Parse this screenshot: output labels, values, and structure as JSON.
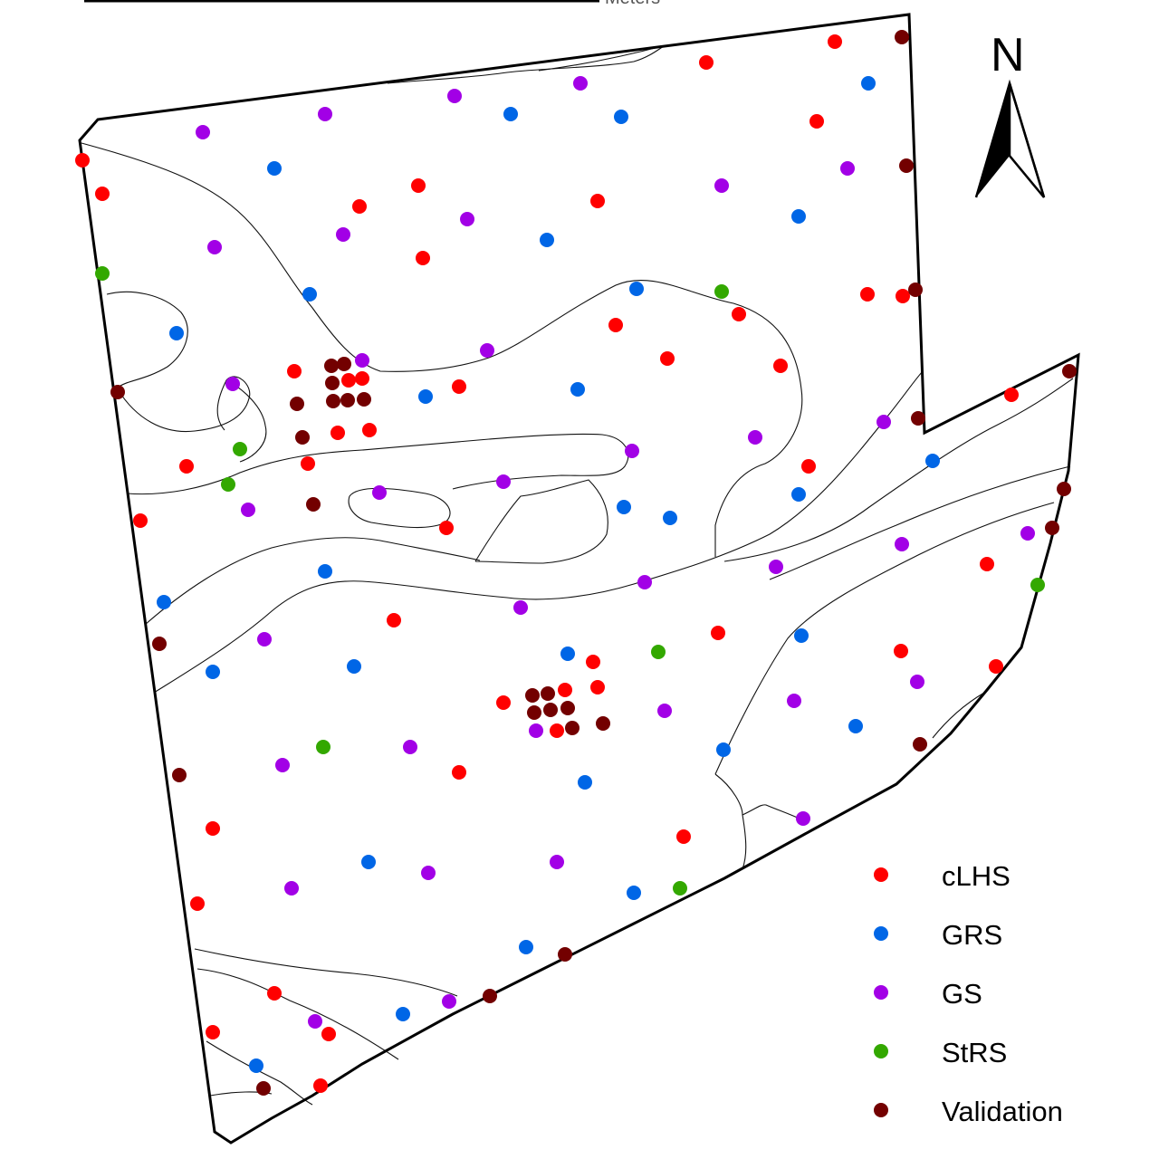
{
  "scale_bar": {
    "unit_label": "Meters"
  },
  "north_arrow": {
    "label": "N",
    "icon": "north-arrow-icon"
  },
  "legend": [
    {
      "label": "cLHS",
      "color": "#ff0000",
      "key": "clhs"
    },
    {
      "label": "GRS",
      "color": "#0066e6",
      "key": "grs"
    },
    {
      "label": "GS",
      "color": "#a200e6",
      "key": "gs"
    },
    {
      "label": "StRS",
      "color": "#33a800",
      "key": "strs"
    },
    {
      "label": "Validation",
      "color": "#730000",
      "key": "validation"
    }
  ],
  "sample_points": {
    "clhs": [
      [
        922,
        46
      ],
      [
        780,
        69
      ],
      [
        902,
        134
      ],
      [
        113,
        214
      ],
      [
        462,
        205
      ],
      [
        397,
        228
      ],
      [
        660,
        222
      ],
      [
        467,
        285
      ],
      [
        91,
        177
      ],
      [
        958,
        325
      ],
      [
        997,
        327
      ],
      [
        816,
        347
      ],
      [
        680,
        359
      ],
      [
        737,
        396
      ],
      [
        862,
        404
      ],
      [
        1117,
        436
      ],
      [
        325,
        410
      ],
      [
        385,
        420
      ],
      [
        400,
        418
      ],
      [
        507,
        427
      ],
      [
        373,
        478
      ],
      [
        408,
        475
      ],
      [
        340,
        512
      ],
      [
        206,
        515
      ],
      [
        893,
        515
      ],
      [
        155,
        575
      ],
      [
        493,
        583
      ],
      [
        1090,
        623
      ],
      [
        435,
        685
      ],
      [
        793,
        699
      ],
      [
        995,
        719
      ],
      [
        1100,
        736
      ],
      [
        655,
        731
      ],
      [
        660,
        759
      ],
      [
        624,
        762
      ],
      [
        556,
        776
      ],
      [
        615,
        807
      ],
      [
        507,
        853
      ],
      [
        235,
        915
      ],
      [
        755,
        924
      ],
      [
        218,
        998
      ],
      [
        303,
        1097
      ],
      [
        235,
        1140
      ],
      [
        363,
        1142
      ],
      [
        354,
        1199
      ]
    ],
    "grs": [
      [
        959,
        92
      ],
      [
        564,
        126
      ],
      [
        686,
        129
      ],
      [
        303,
        186
      ],
      [
        882,
        239
      ],
      [
        604,
        265
      ],
      [
        703,
        319
      ],
      [
        342,
        325
      ],
      [
        195,
        368
      ],
      [
        470,
        438
      ],
      [
        638,
        430
      ],
      [
        1030,
        509
      ],
      [
        882,
        546
      ],
      [
        689,
        560
      ],
      [
        740,
        572
      ],
      [
        359,
        631
      ],
      [
        181,
        665
      ],
      [
        627,
        722
      ],
      [
        885,
        702
      ],
      [
        235,
        742
      ],
      [
        391,
        736
      ],
      [
        945,
        802
      ],
      [
        799,
        828
      ],
      [
        646,
        864
      ],
      [
        407,
        952
      ],
      [
        700,
        986
      ],
      [
        581,
        1046
      ],
      [
        445,
        1120
      ],
      [
        283,
        1177
      ]
    ],
    "gs": [
      [
        641,
        92
      ],
      [
        502,
        106
      ],
      [
        359,
        126
      ],
      [
        224,
        146
      ],
      [
        936,
        186
      ],
      [
        797,
        205
      ],
      [
        516,
        242
      ],
      [
        379,
        259
      ],
      [
        237,
        273
      ],
      [
        538,
        387
      ],
      [
        400,
        398
      ],
      [
        257,
        424
      ],
      [
        976,
        466
      ],
      [
        834,
        483
      ],
      [
        698,
        498
      ],
      [
        556,
        532
      ],
      [
        419,
        544
      ],
      [
        274,
        563
      ],
      [
        1135,
        589
      ],
      [
        996,
        601
      ],
      [
        857,
        626
      ],
      [
        712,
        643
      ],
      [
        575,
        671
      ],
      [
        292,
        706
      ],
      [
        1013,
        753
      ],
      [
        877,
        774
      ],
      [
        734,
        785
      ],
      [
        592,
        807
      ],
      [
        453,
        825
      ],
      [
        312,
        845
      ],
      [
        887,
        904
      ],
      [
        615,
        952
      ],
      [
        473,
        964
      ],
      [
        322,
        981
      ],
      [
        496,
        1106
      ],
      [
        348,
        1128
      ]
    ],
    "strs": [
      [
        113,
        302
      ],
      [
        797,
        322
      ],
      [
        265,
        496
      ],
      [
        252,
        535
      ],
      [
        1146,
        646
      ],
      [
        727,
        720
      ],
      [
        357,
        825
      ],
      [
        751,
        981
      ]
    ],
    "validation": [
      [
        996,
        41
      ],
      [
        1001,
        183
      ],
      [
        1011,
        320
      ],
      [
        130,
        433
      ],
      [
        366,
        404
      ],
      [
        380,
        402
      ],
      [
        367,
        423
      ],
      [
        368,
        443
      ],
      [
        384,
        442
      ],
      [
        402,
        441
      ],
      [
        328,
        446
      ],
      [
        334,
        483
      ],
      [
        1014,
        462
      ],
      [
        1181,
        410
      ],
      [
        346,
        557
      ],
      [
        1175,
        540
      ],
      [
        1162,
        583
      ],
      [
        176,
        711
      ],
      [
        588,
        768
      ],
      [
        605,
        766
      ],
      [
        590,
        787
      ],
      [
        608,
        784
      ],
      [
        627,
        782
      ],
      [
        632,
        804
      ],
      [
        666,
        799
      ],
      [
        198,
        856
      ],
      [
        1016,
        822
      ],
      [
        624,
        1054
      ],
      [
        541,
        1100
      ],
      [
        291,
        1202
      ]
    ]
  }
}
